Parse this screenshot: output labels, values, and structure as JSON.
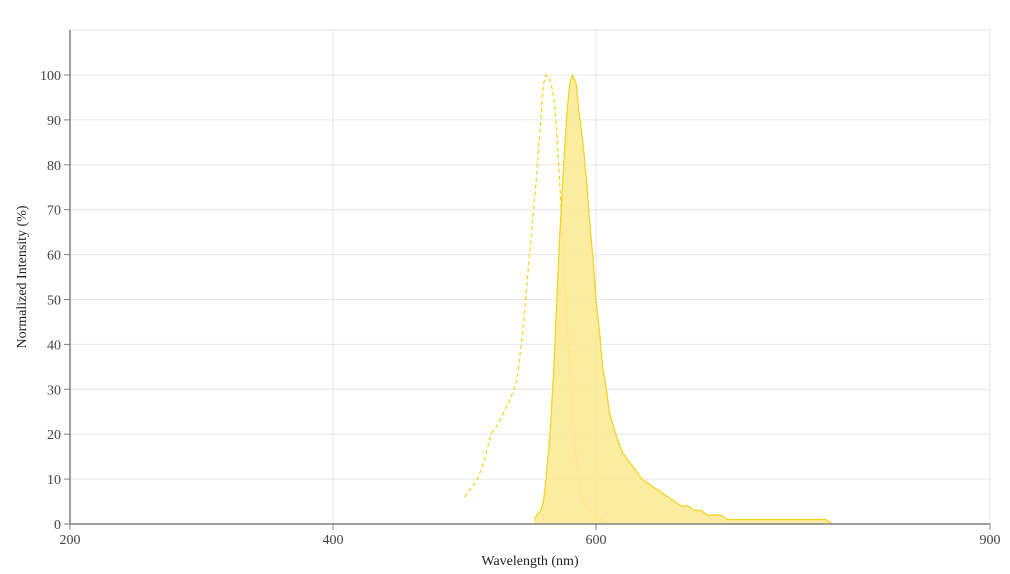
{
  "chart_data": {
    "type": "area",
    "title": "",
    "xlabel": "Wavelength (nm)",
    "ylabel": "Normalized Intensity (%)",
    "xlim": [
      200,
      900
    ],
    "ylim": [
      0,
      110
    ],
    "x_ticks": [
      200,
      400,
      600,
      900
    ],
    "x_tick_labels": [
      "200",
      "400",
      "600",
      "900"
    ],
    "y_ticks": [
      0,
      10,
      20,
      30,
      40,
      50,
      60,
      70,
      80,
      90,
      100
    ],
    "y_tick_labels": [
      "0",
      "10",
      "20",
      "30",
      "40",
      "50",
      "60",
      "70",
      "80",
      "90",
      "100"
    ],
    "grid": true,
    "legend": "none",
    "series": [
      {
        "style": "dashed line",
        "color": "#f2d21b",
        "x": [
          500,
          505,
          510,
          515,
          520,
          525,
          530,
          535,
          540,
          545,
          550,
          555,
          558,
          560,
          562,
          565,
          568,
          570,
          572,
          575,
          578,
          580,
          582,
          585,
          588,
          590,
          595,
          600,
          605,
          608
        ],
        "y": [
          6,
          8,
          10,
          14,
          20,
          22,
          25,
          28,
          32,
          45,
          62,
          78,
          90,
          98,
          100,
          99,
          95,
          88,
          78,
          62,
          45,
          35,
          25,
          14,
          8,
          5,
          3,
          2,
          1,
          0
        ]
      },
      {
        "style": "filled area",
        "color": "#f2d21b",
        "fill": "#fbe98f",
        "x": [
          553,
          555,
          558,
          560,
          562,
          565,
          568,
          570,
          572,
          575,
          578,
          580,
          582,
          585,
          587,
          590,
          593,
          595,
          598,
          600,
          603,
          605,
          608,
          610,
          615,
          620,
          625,
          630,
          635,
          640,
          645,
          650,
          655,
          660,
          665,
          670,
          675,
          680,
          685,
          690,
          695,
          700,
          705,
          710,
          715,
          720,
          725,
          730,
          735,
          740,
          745,
          750,
          755,
          760,
          765,
          770,
          775,
          780
        ],
        "y": [
          1,
          2,
          3,
          5,
          10,
          20,
          35,
          48,
          62,
          78,
          92,
          98,
          100,
          98,
          92,
          85,
          76,
          68,
          58,
          50,
          42,
          35,
          30,
          25,
          20,
          16,
          14,
          12,
          10,
          9,
          8,
          7,
          6,
          5,
          4,
          4,
          3,
          3,
          2,
          2,
          2,
          1,
          1,
          1,
          1,
          1,
          1,
          1,
          1,
          1,
          1,
          1,
          1,
          1,
          1,
          1,
          1,
          0
        ]
      }
    ]
  }
}
